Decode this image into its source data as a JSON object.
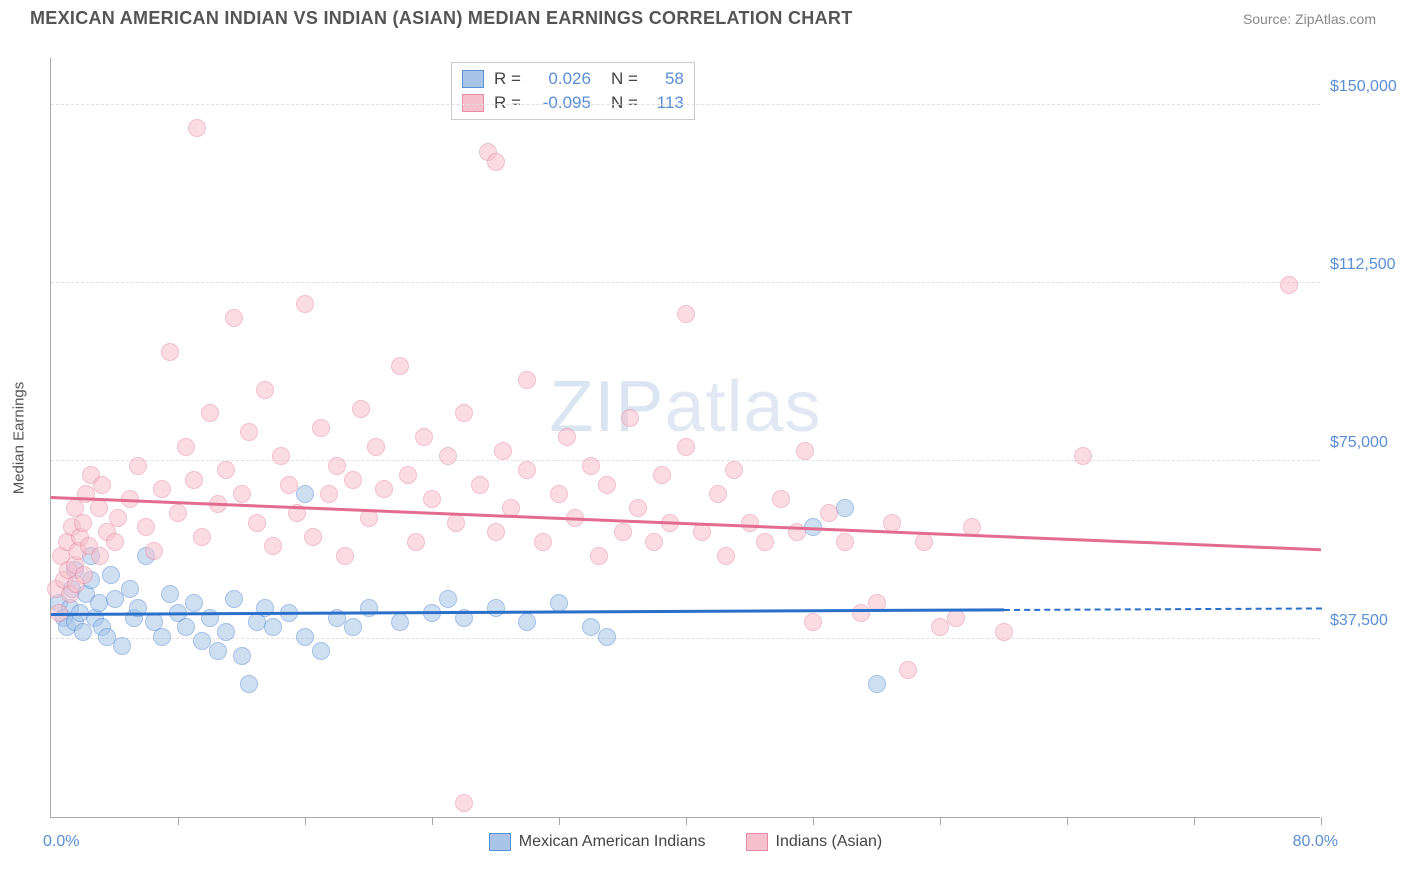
{
  "title": "MEXICAN AMERICAN INDIAN VS INDIAN (ASIAN) MEDIAN EARNINGS CORRELATION CHART",
  "source_prefix": "Source: ",
  "source": "ZipAtlas.com",
  "watermark_bold": "ZIP",
  "watermark_thin": "atlas",
  "yaxis_label": "Median Earnings",
  "chart": {
    "type": "scatter",
    "background_color": "#ffffff",
    "grid_color": "#e0e0e0",
    "axis_color": "#aaaaaa",
    "xlim": [
      0,
      80
    ],
    "ylim": [
      0,
      160000
    ],
    "x_start_label": "0.0%",
    "x_end_label": "80.0%",
    "yticks": [
      {
        "v": 37500,
        "label": "$37,500"
      },
      {
        "v": 75000,
        "label": "$75,000"
      },
      {
        "v": 112500,
        "label": "$112,500"
      },
      {
        "v": 150000,
        "label": "$150,000"
      }
    ],
    "xticks_minor": [
      8,
      16,
      24,
      32,
      40,
      48,
      56,
      64,
      72,
      80
    ],
    "point_radius": 9,
    "point_opacity": 0.55,
    "series": [
      {
        "name": "Mexican American Indians",
        "fill": "#a8c5e8",
        "stroke": "#5a8fd6",
        "R_label": "R =",
        "R": "0.026",
        "N_label": "N =",
        "N": "58",
        "trend": {
          "x0": 0,
          "y0": 42500,
          "x1": 80,
          "y1": 43800,
          "color": "#2a6fc9",
          "dash_after_x": 60
        },
        "points": [
          [
            0.5,
            45000
          ],
          [
            0.8,
            42000
          ],
          [
            1.0,
            40000
          ],
          [
            1.2,
            44000
          ],
          [
            1.3,
            48000
          ],
          [
            1.5,
            41000
          ],
          [
            1.5,
            52000
          ],
          [
            1.8,
            43000
          ],
          [
            2.0,
            39000
          ],
          [
            2.2,
            47000
          ],
          [
            2.5,
            55000
          ],
          [
            2.5,
            50000
          ],
          [
            2.8,
            42000
          ],
          [
            3.0,
            45000
          ],
          [
            3.2,
            40000
          ],
          [
            3.5,
            38000
          ],
          [
            3.8,
            51000
          ],
          [
            4.0,
            46000
          ],
          [
            4.5,
            36000
          ],
          [
            5.0,
            48000
          ],
          [
            5.2,
            42000
          ],
          [
            5.5,
            44000
          ],
          [
            6.0,
            55000
          ],
          [
            6.5,
            41000
          ],
          [
            7.0,
            38000
          ],
          [
            7.5,
            47000
          ],
          [
            8.0,
            43000
          ],
          [
            8.5,
            40000
          ],
          [
            9.0,
            45000
          ],
          [
            9.5,
            37000
          ],
          [
            10,
            42000
          ],
          [
            10.5,
            35000
          ],
          [
            11,
            39000
          ],
          [
            11.5,
            46000
          ],
          [
            12,
            34000
          ],
          [
            12.5,
            28000
          ],
          [
            13,
            41000
          ],
          [
            13.5,
            44000
          ],
          [
            14,
            40000
          ],
          [
            15,
            43000
          ],
          [
            16,
            38000
          ],
          [
            16,
            68000
          ],
          [
            17,
            35000
          ],
          [
            18,
            42000
          ],
          [
            19,
            40000
          ],
          [
            20,
            44000
          ],
          [
            22,
            41000
          ],
          [
            24,
            43000
          ],
          [
            25,
            46000
          ],
          [
            26,
            42000
          ],
          [
            28,
            44000
          ],
          [
            30,
            41000
          ],
          [
            32,
            45000
          ],
          [
            34,
            40000
          ],
          [
            35,
            38000
          ],
          [
            48,
            61000
          ],
          [
            50,
            65000
          ],
          [
            52,
            28000
          ]
        ]
      },
      {
        "name": "Indians (Asian)",
        "fill": "#f6c0cc",
        "stroke": "#e88ba5",
        "R_label": "R =",
        "R": "-0.095",
        "N_label": "N =",
        "N": "113",
        "trend": {
          "x0": 0,
          "y0": 67000,
          "x1": 80,
          "y1": 56000,
          "color": "#e36b8f",
          "dash_after_x": 80
        },
        "points": [
          [
            0.3,
            48000
          ],
          [
            0.5,
            43000
          ],
          [
            0.6,
            55000
          ],
          [
            0.8,
            50000
          ],
          [
            1.0,
            58000
          ],
          [
            1.1,
            52000
          ],
          [
            1.2,
            47000
          ],
          [
            1.3,
            61000
          ],
          [
            1.5,
            53000
          ],
          [
            1.5,
            65000
          ],
          [
            1.6,
            49000
          ],
          [
            1.7,
            56000
          ],
          [
            1.8,
            59000
          ],
          [
            2.0,
            62000
          ],
          [
            2.1,
            51000
          ],
          [
            2.2,
            68000
          ],
          [
            2.4,
            57000
          ],
          [
            2.5,
            72000
          ],
          [
            3.0,
            65000
          ],
          [
            3.1,
            55000
          ],
          [
            3.2,
            70000
          ],
          [
            3.5,
            60000
          ],
          [
            4.0,
            58000
          ],
          [
            4.2,
            63000
          ],
          [
            5.0,
            67000
          ],
          [
            5.5,
            74000
          ],
          [
            6.0,
            61000
          ],
          [
            6.5,
            56000
          ],
          [
            7.0,
            69000
          ],
          [
            7.5,
            98000
          ],
          [
            8.0,
            64000
          ],
          [
            8.5,
            78000
          ],
          [
            9.0,
            71000
          ],
          [
            9.2,
            145000
          ],
          [
            9.5,
            59000
          ],
          [
            10,
            85000
          ],
          [
            10.5,
            66000
          ],
          [
            11,
            73000
          ],
          [
            11.5,
            105000
          ],
          [
            12,
            68000
          ],
          [
            12.5,
            81000
          ],
          [
            13,
            62000
          ],
          [
            13.5,
            90000
          ],
          [
            14,
            57000
          ],
          [
            14.5,
            76000
          ],
          [
            15,
            70000
          ],
          [
            15.5,
            64000
          ],
          [
            16,
            108000
          ],
          [
            16.5,
            59000
          ],
          [
            17,
            82000
          ],
          [
            17.5,
            68000
          ],
          [
            18,
            74000
          ],
          [
            18.5,
            55000
          ],
          [
            19,
            71000
          ],
          [
            19.5,
            86000
          ],
          [
            20,
            63000
          ],
          [
            20.5,
            78000
          ],
          [
            21,
            69000
          ],
          [
            22,
            95000
          ],
          [
            22.5,
            72000
          ],
          [
            23,
            58000
          ],
          [
            23.5,
            80000
          ],
          [
            24,
            67000
          ],
          [
            25,
            76000
          ],
          [
            25.5,
            62000
          ],
          [
            26,
            85000
          ],
          [
            26,
            3000
          ],
          [
            27,
            70000
          ],
          [
            27.5,
            140000
          ],
          [
            28,
            60000
          ],
          [
            28.5,
            77000
          ],
          [
            28,
            138000
          ],
          [
            29,
            65000
          ],
          [
            30,
            73000
          ],
          [
            30,
            92000
          ],
          [
            31,
            58000
          ],
          [
            32,
            68000
          ],
          [
            32.5,
            80000
          ],
          [
            33,
            63000
          ],
          [
            34,
            74000
          ],
          [
            34.5,
            55000
          ],
          [
            35,
            70000
          ],
          [
            36,
            60000
          ],
          [
            36.5,
            84000
          ],
          [
            37,
            65000
          ],
          [
            38,
            58000
          ],
          [
            38.5,
            72000
          ],
          [
            39,
            62000
          ],
          [
            40,
            78000
          ],
          [
            40,
            106000
          ],
          [
            41,
            60000
          ],
          [
            42,
            68000
          ],
          [
            42.5,
            55000
          ],
          [
            43,
            73000
          ],
          [
            44,
            62000
          ],
          [
            45,
            58000
          ],
          [
            46,
            67000
          ],
          [
            47,
            60000
          ],
          [
            47.5,
            77000
          ],
          [
            48,
            41000
          ],
          [
            49,
            64000
          ],
          [
            50,
            58000
          ],
          [
            51,
            43000
          ],
          [
            52,
            45000
          ],
          [
            53,
            62000
          ],
          [
            54,
            31000
          ],
          [
            55,
            58000
          ],
          [
            56,
            40000
          ],
          [
            57,
            42000
          ],
          [
            58,
            61000
          ],
          [
            60,
            39000
          ],
          [
            65,
            76000
          ],
          [
            78,
            112000
          ]
        ]
      }
    ]
  }
}
